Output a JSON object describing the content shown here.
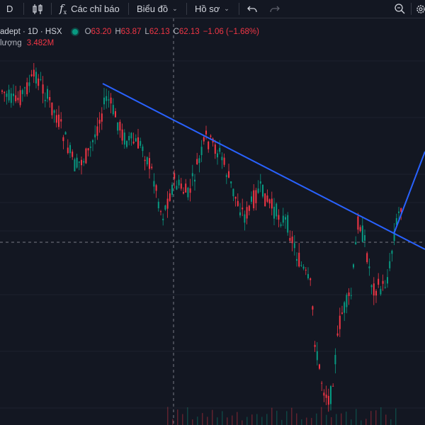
{
  "toolbar": {
    "symbol_btn": "D",
    "indicators_label": "Các chỉ báo",
    "chart_type_label": "Biểu đồ",
    "profile_label": "Hồ sơ"
  },
  "legend": {
    "symbol": "adept · 1D · HSX",
    "o_label": "O",
    "o_value": "63.20",
    "h_label": "H",
    "h_value": "63.87",
    "l_label": "L",
    "l_value": "62.13",
    "c_label": "C",
    "c_value": "62.13",
    "change": "−1.06 (−1.68%)",
    "status_color": "#089981"
  },
  "volume": {
    "label": "lượng",
    "value": "3.482M"
  },
  "colors": {
    "background": "#131722",
    "up": "#089981",
    "down": "#f23645",
    "trendline": "#2962ff",
    "text": "#d1d4dc"
  },
  "chart_data": {
    "type": "candlestick",
    "symbol": "adept",
    "interval": "1D",
    "exchange": "HSX",
    "last_ohlc": {
      "open": 63.2,
      "high": 63.87,
      "low": 62.13,
      "close": 62.13
    },
    "change": -1.06,
    "change_pct": -1.68,
    "volume": "3.482M",
    "drawings": [
      "descending-trendline",
      "breakout-arrow"
    ]
  }
}
